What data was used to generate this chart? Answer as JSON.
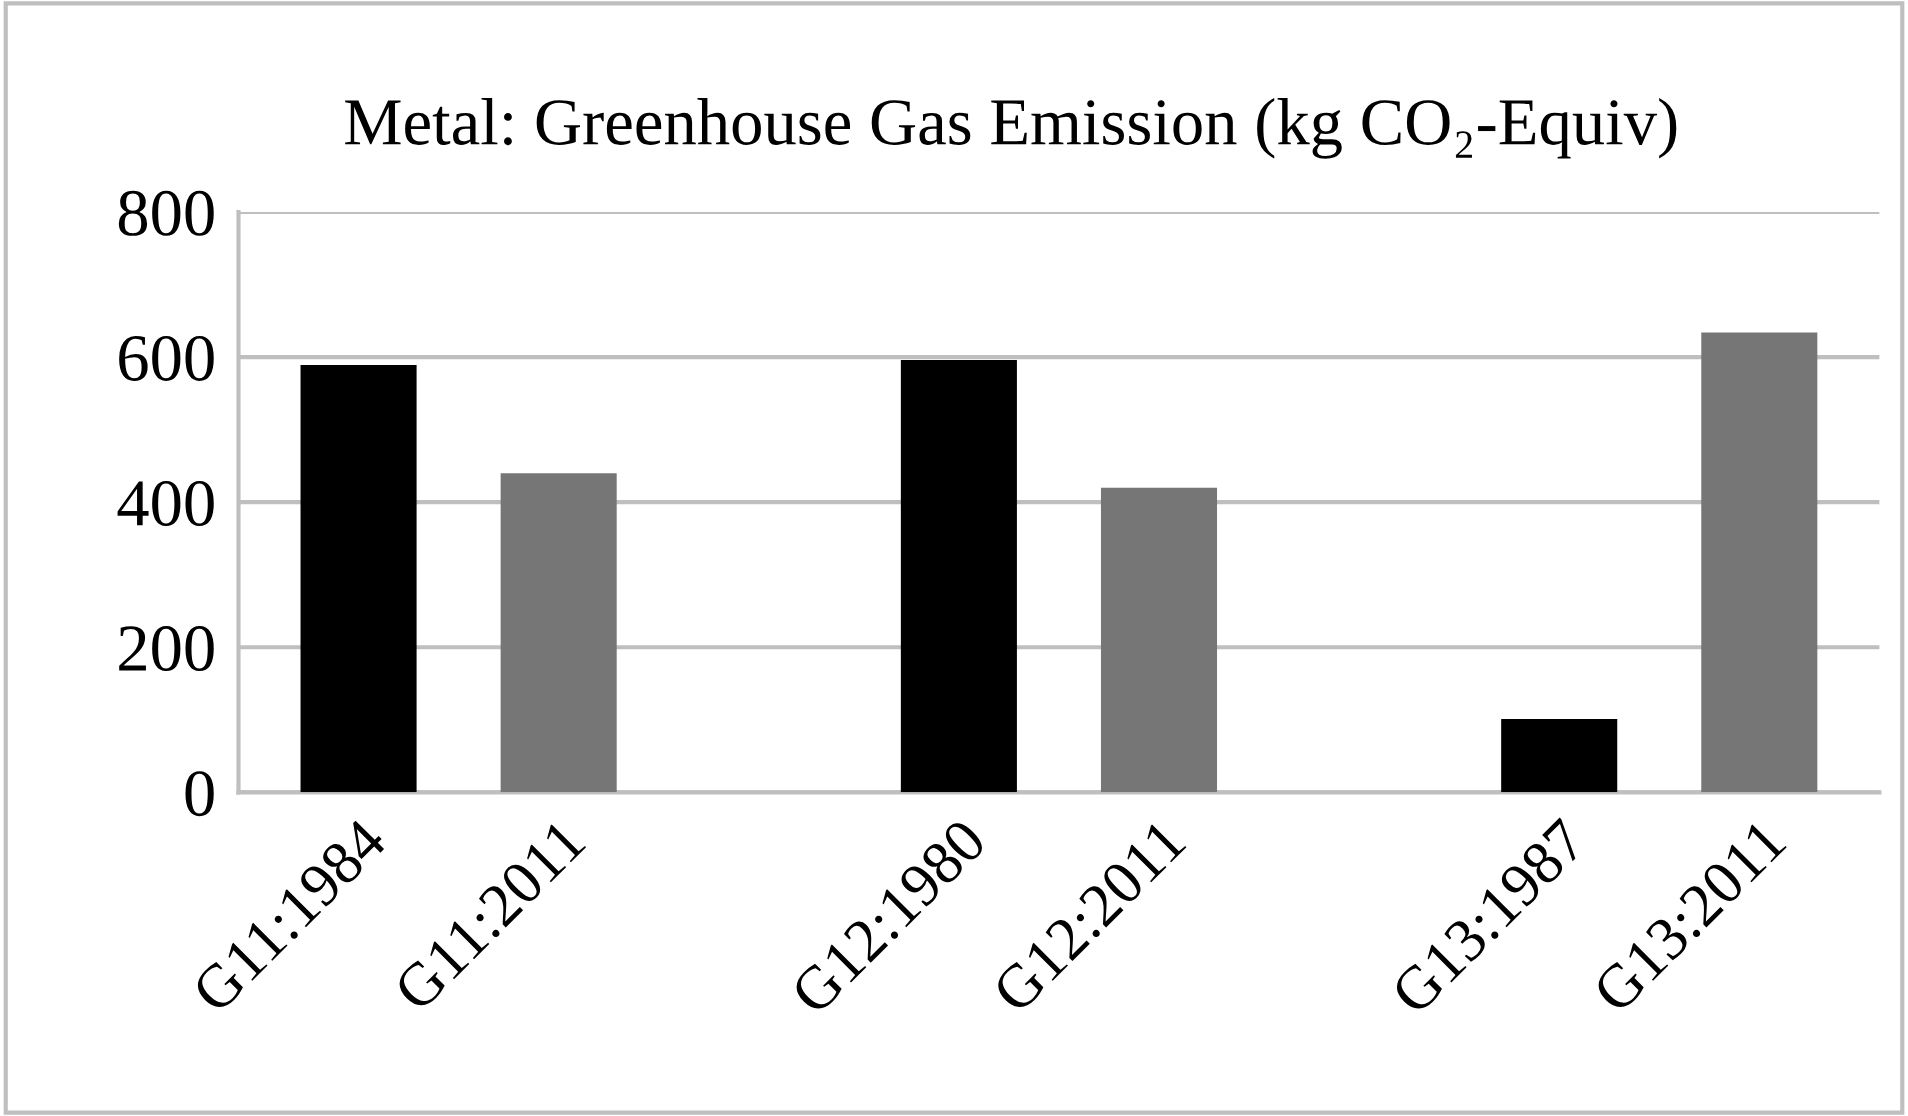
{
  "chart_data": {
    "type": "bar",
    "title": "Metal: Greenhouse Gas Emission (kg CO₂-Equiv)",
    "categories": [
      "G11:1984",
      "G11:2011",
      null,
      "G12:1980",
      "G12:2011",
      null,
      "G13:1987",
      "G13:2011"
    ],
    "values": [
      589,
      440,
      null,
      596,
      420,
      null,
      101,
      634
    ],
    "colors": [
      "#000000",
      "#767676",
      null,
      "#000000",
      "#767676",
      null,
      "#000000",
      "#767676"
    ],
    "ylim": [
      0,
      800
    ],
    "yticks": [
      0,
      200,
      400,
      600,
      800
    ],
    "grid": "y"
  }
}
